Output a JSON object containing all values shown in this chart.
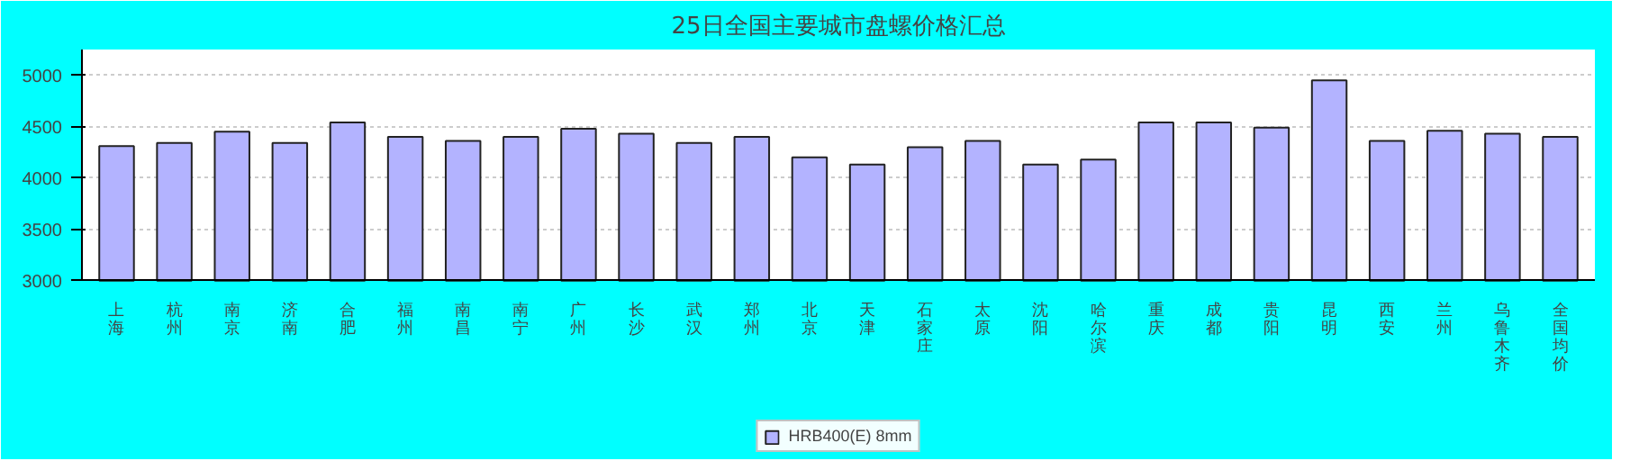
{
  "chart_data": {
    "type": "bar",
    "title": "25日全国主要城市盘螺价格汇总",
    "categories": [
      "上海",
      "杭州",
      "南京",
      "济南",
      "合肥",
      "福州",
      "南昌",
      "南宁",
      "广州",
      "长沙",
      "武汉",
      "郑州",
      "北京",
      "天津",
      "石家庄",
      "太原",
      "沈阳",
      "哈尔滨",
      "重庆",
      "成都",
      "贵阳",
      "昆明",
      "西安",
      "兰州",
      "乌鲁木齐",
      "全国均价"
    ],
    "series": [
      {
        "name": "HRB400(E) 8mm",
        "color": "#b3b3ff",
        "values": [
          4310,
          4340,
          4450,
          4340,
          4540,
          4400,
          4360,
          4400,
          4480,
          4430,
          4340,
          4400,
          4200,
          4130,
          4300,
          4360,
          4130,
          4180,
          4540,
          4540,
          4490,
          4950,
          4360,
          4460,
          4430,
          4400
        ]
      }
    ],
    "ylim": [
      3000,
      5250
    ],
    "yticks": [
      3000,
      3500,
      4000,
      4500,
      5000
    ],
    "grid": "y",
    "legend": "bottom"
  }
}
